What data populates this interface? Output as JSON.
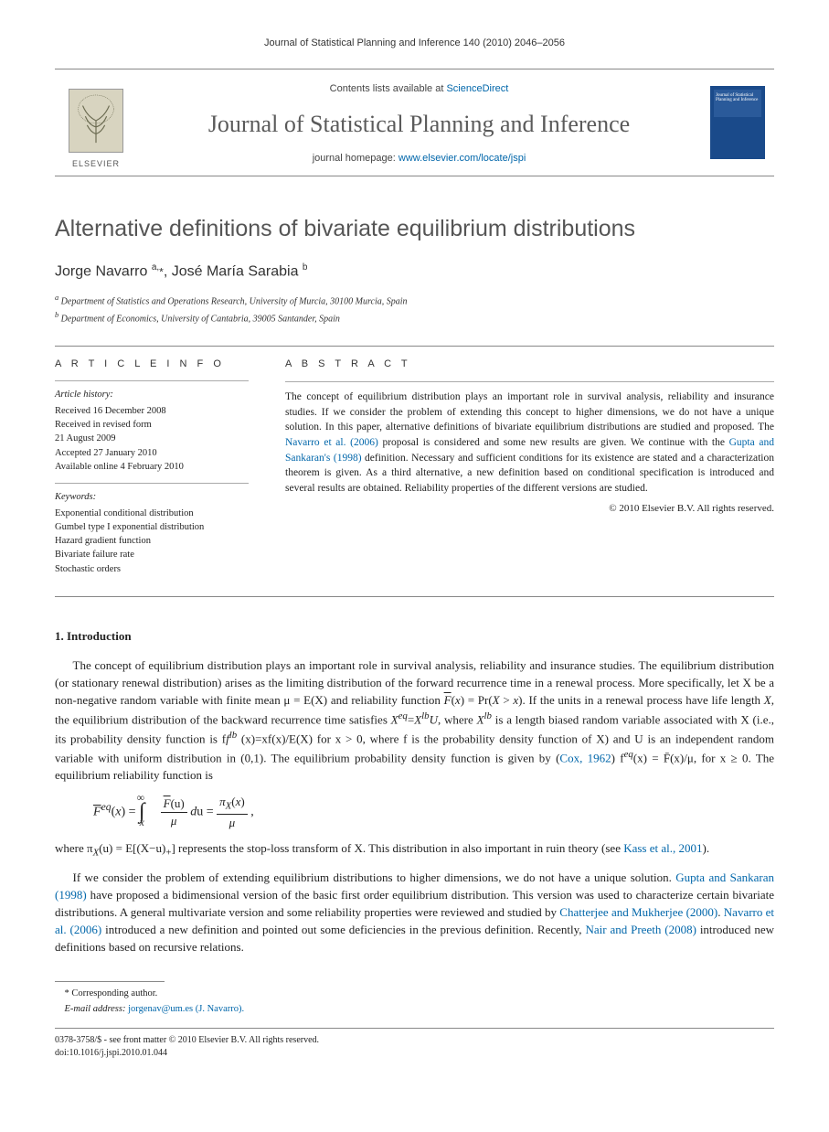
{
  "running_head": "Journal of Statistical Planning and Inference 140 (2010) 2046–2056",
  "masthead": {
    "contents_prefix": "Contents lists available at ",
    "contents_link": "ScienceDirect",
    "journal_name": "Journal of Statistical Planning and Inference",
    "homepage_prefix": "journal homepage: ",
    "homepage_link": "www.elsevier.com/locate/jspi",
    "publisher": "ELSEVIER",
    "cover_text": "Journal of Statistical Planning and Inference"
  },
  "article": {
    "title": "Alternative definitions of bivariate equilibrium distributions",
    "authors_html": "Jorge Navarro <sup>a,</sup><span class='corr'>*</span>, José María Sarabia <sup>b</sup>",
    "affiliations": [
      "a Department of Statistics and Operations Research, University of Murcia, 30100 Murcia, Spain",
      "b Department of Economics, University of Cantabria, 39005 Santander, Spain"
    ]
  },
  "info": {
    "label": "A R T I C L E   I N F O",
    "history_title": "Article history:",
    "history": [
      "Received 16 December 2008",
      "Received in revised form",
      "21 August 2009",
      "Accepted 27 January 2010",
      "Available online 4 February 2010"
    ],
    "keywords_title": "Keywords:",
    "keywords": [
      "Exponential conditional distribution",
      "Gumbel type I exponential distribution",
      "Hazard gradient function",
      "Bivariate failure rate",
      "Stochastic orders"
    ]
  },
  "abstract": {
    "label": "A B S T R A C T",
    "text_parts": [
      "The concept of equilibrium distribution plays an important role in survival analysis, reliability and insurance studies. If we consider the problem of extending this concept to higher dimensions, we do not have a unique solution. In this paper, alternative definitions of bivariate equilibrium distributions are studied and proposed. The ",
      "Navarro et al. (2006)",
      " proposal is considered and some new results are given. We continue with the ",
      "Gupta and Sankaran's (1998)",
      " definition. Necessary and sufficient conditions for its existence are stated and a characterization theorem is given. As a third alternative, a new definition based on conditional specification is introduced and several results are obtained. Reliability properties of the different versions are studied."
    ],
    "copyright": "© 2010 Elsevier B.V. All rights reserved."
  },
  "body": {
    "section_title": "1.  Introduction",
    "p1_a": "The concept of equilibrium distribution plays an important role in survival analysis, reliability and insurance studies. The equilibrium distribution (or stationary renewal distribution) arises as the limiting distribution of the forward recurrence time in a renewal process. More specifically, let X be a non-negative random variable with finite mean μ = E(X) and reliability function ",
    "p1_b": "F̄(x) = Pr(X > x). If the units in a renewal process have life length X, the equilibrium distribution of the backward recurrence time satisfies X",
    "p1_c": "=X",
    "p1_d": "U, where X",
    "p1_e": " is a length biased random variable associated with X (i.e., its probability density function is f",
    "p1_f": " (x)=xf(x)/E(X) for x > 0, where f is the probability density function of X) and U is an independent random variable with uniform distribution in (0,1). The equilibrium probability density function is given by (",
    "p1_cox": "Cox, 1962",
    "p1_g": ") f",
    "p1_h": "(x) = F̄(x)/μ, for x ≥ 0. The equilibrium reliability function is",
    "p2_a": "where π",
    "p2_b": "(u) = E[(X−u)",
    "p2_c": "] represents the stop-loss transform of X. This distribution in also important in ruin theory (see ",
    "p2_kass": "Kass et al., 2001",
    "p2_d": ").",
    "p3_a": "If we consider the problem of extending equilibrium distributions to higher dimensions, we do not have a unique solution. ",
    "p3_gs": "Gupta and Sankaran (1998)",
    "p3_b": " have proposed a bidimensional version of the basic first order equilibrium distribution. This version was used to characterize certain bivariate distributions. A general multivariate version and some reliability properties were reviewed and studied by ",
    "p3_cm": "Chatterjee and Mukherjee (2000)",
    "p3_c": ". ",
    "p3_nav": "Navarro et al. (2006)",
    "p3_d": " introduced a new definition and pointed out some deficiencies in the previous definition. Recently, ",
    "p3_np": "Nair and Preeth (2008)",
    "p3_e": " introduced new definitions based on recursive relations."
  },
  "footnotes": {
    "corr": "* Corresponding author.",
    "email_label": "E-mail address:",
    "email": "jorgenav@um.es (J. Navarro)."
  },
  "bottom": {
    "line1": "0378-3758/$ - see front matter © 2010 Elsevier B.V. All rights reserved.",
    "line2": "doi:10.1016/j.jspi.2010.01.044"
  }
}
